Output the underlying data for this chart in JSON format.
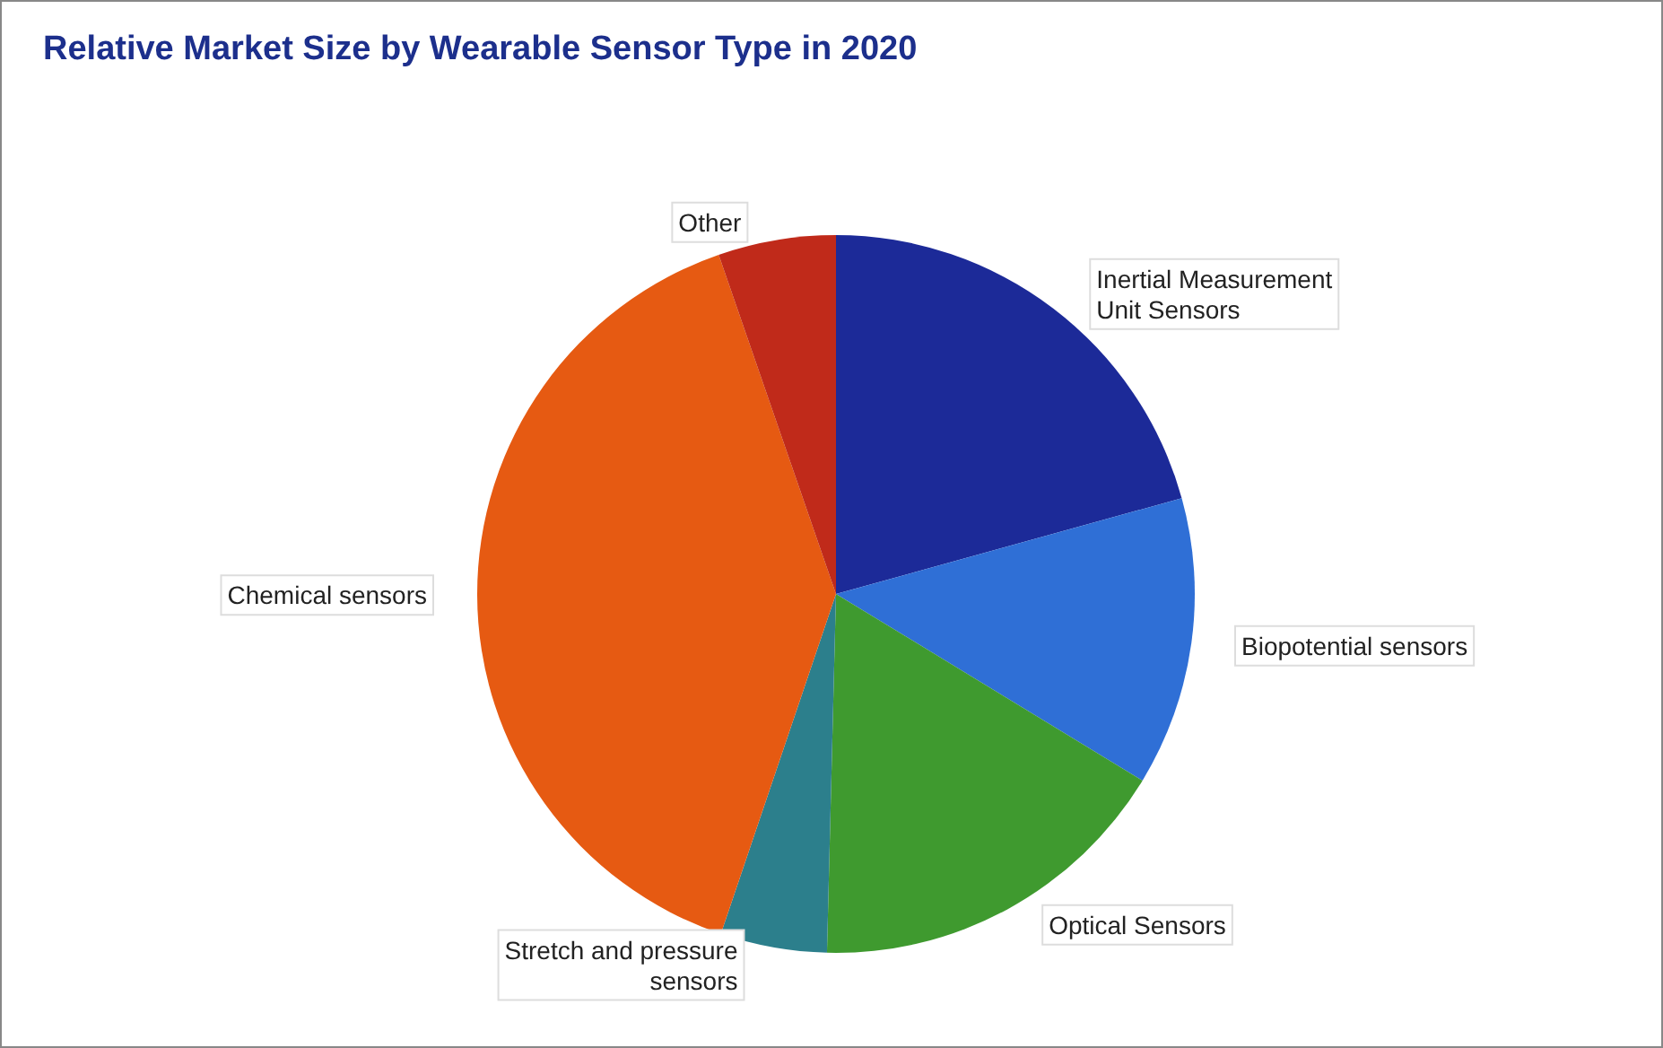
{
  "chart_data": {
    "type": "pie",
    "title": "Relative Market Size by Wearable Sensor Type in 2020",
    "categories": [
      "Inertial Measurement\nUnit Sensors",
      "Biopotential sensors",
      "Optical Sensors",
      "Stretch and pressure\nsensors",
      "Chemical sensors",
      "Other"
    ],
    "values": [
      20.7,
      13,
      16.7,
      4.8,
      39.5,
      5.3
    ],
    "colors": [
      "#1c2a98",
      "#2f6fd6",
      "#3f9a2f",
      "#2c7f8c",
      "#e65a12",
      "#c02a1a"
    ],
    "legend": false
  }
}
